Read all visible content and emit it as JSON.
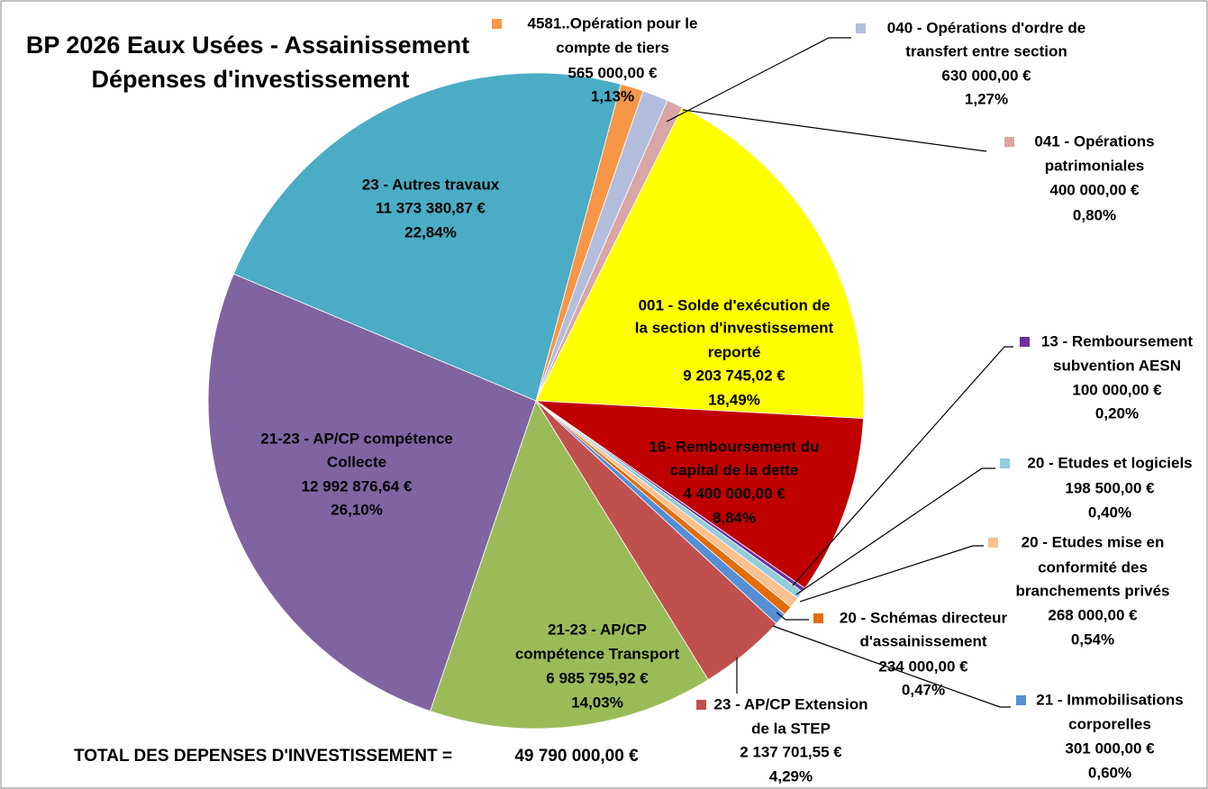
{
  "chart_data": {
    "type": "pie",
    "title": [
      "BP 2026 Eaux Usées - Assainissement",
      "Dépenses d'investissement"
    ],
    "labels": [
      [
        "4581..Opération pour le",
        "compte de tiers"
      ],
      [
        "040 - Opérations d'ordre de",
        "transfert entre section"
      ],
      [
        "041 - Opérations",
        "patrimoniales"
      ],
      [
        "001 - Solde d'exécution de",
        "la section d'investissement",
        "reporté"
      ],
      [
        "16- Remboursement du",
        "capital de la dette"
      ],
      [
        "13 - Remboursement",
        "subvention AESN"
      ],
      [
        "20 - Etudes et logiciels"
      ],
      [
        "20 - Etudes mise en",
        "conformité des",
        "branchements privés"
      ],
      [
        "20 - Schémas directeur",
        "d'assainissement"
      ],
      [
        "21 - Immobilisations",
        "corporelles"
      ],
      [
        "23 - AP/CP Extension",
        "de la STEP"
      ],
      [
        "21-23 - AP/CP",
        "compétence Transport"
      ],
      [
        "21-23 - AP/CP compétence",
        "Collecte"
      ],
      [
        "23 - Autres travaux"
      ]
    ],
    "values": [
      565000,
      630000,
      400000,
      9203745.02,
      4400000,
      100000,
      198500,
      268000,
      234000,
      301000,
      2137701.55,
      6985795.92,
      12992876.64,
      11373380.87
    ],
    "value_labels": [
      "565 000,00 €",
      "630 000,00 €",
      "400 000,00 €",
      "9 203 745,02 €",
      "4 400 000,00 €",
      "100 000,00 €",
      "198 500,00 €",
      "268 000,00 €",
      "234 000,00 €",
      "301 000,00 €",
      "2 137 701,55 €",
      "6 985 795,92 €",
      "12 992 876,64 €",
      "11 373 380,87 €"
    ],
    "percent_labels": [
      "1,13%",
      "1,27%",
      "0,80%",
      "18,49%",
      "8,84%",
      "0,20%",
      "0,40%",
      "0,54%",
      "0,47%",
      "0,60%",
      "4,29%",
      "14,03%",
      "26,10%",
      "22,84%"
    ],
    "colors": [
      "#f79646",
      "#b3bedd",
      "#d9a5a5",
      "#ffff00",
      "#c00000",
      "#7030a0",
      "#92cddc",
      "#fac090",
      "#e36c09",
      "#558ed5",
      "#c0504d",
      "#9bbb59",
      "#8064a2",
      "#4bacc6"
    ],
    "total": {
      "label": "TOTAL DES DEPENSES D'INVESTISSEMENT  =",
      "value": 49790000,
      "value_label": "49 790 000,00 €"
    }
  }
}
